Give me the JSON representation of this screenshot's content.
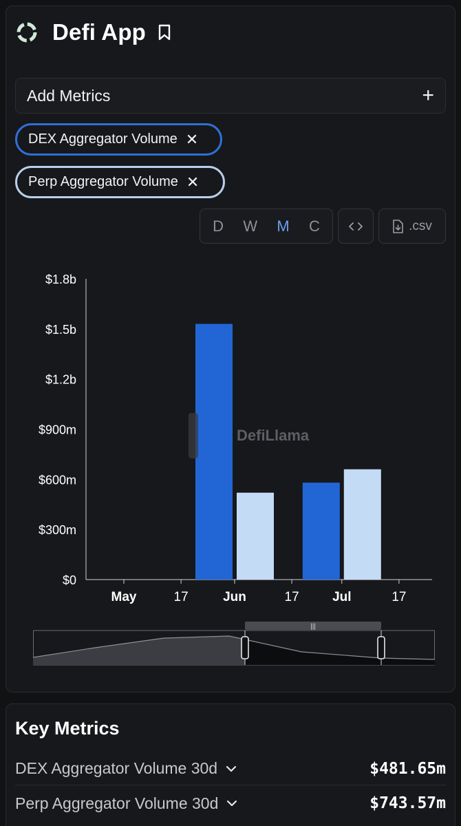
{
  "app": {
    "title": "Defi App",
    "logo_icon": "ring-logo-icon",
    "bookmark_icon": "bookmark-icon"
  },
  "add_metrics": {
    "label": "Add Metrics",
    "icon": "plus-icon"
  },
  "chips": [
    {
      "label": "DEX Aggregator Volume",
      "color": "#2f6fd9"
    },
    {
      "label": "Perp Aggregator Volume",
      "color": "#b8cfec"
    }
  ],
  "toolbar": {
    "granularity": [
      "D",
      "W",
      "M",
      "C"
    ],
    "active_granularity": "M",
    "embed_icon": "code-icon",
    "csv_label": ".csv",
    "csv_icon": "download-file-icon"
  },
  "watermark": {
    "text": "DefiLlama"
  },
  "chart_data": {
    "type": "bar",
    "x_ticks": [
      "May",
      "17",
      "Jun",
      "17",
      "Jul",
      "17"
    ],
    "y_ticks": [
      "$0",
      "$300m",
      "$600m",
      "$900m",
      "$1.2b",
      "$1.5b",
      "$1.8b"
    ],
    "ylim": [
      0,
      1800000000
    ],
    "series": [
      {
        "name": "DEX Aggregator Volume",
        "color": "#2266d6",
        "points": [
          {
            "x": "2025-06-01",
            "value": 1530000000
          },
          {
            "x": "2025-07-01",
            "value": 580000000
          }
        ]
      },
      {
        "name": "Perp Aggregator Volume",
        "color": "#c4dbf6",
        "points": [
          {
            "x": "2025-06-01",
            "value": 520000000
          },
          {
            "x": "2025-07-01",
            "value": 660000000
          }
        ]
      }
    ],
    "legend": "none",
    "grid": false
  },
  "key_metrics": {
    "title": "Key Metrics",
    "rows": [
      {
        "label": "DEX Aggregator Volume 30d",
        "value": "$481.65m"
      },
      {
        "label": "Perp Aggregator Volume 30d",
        "value": "$743.57m"
      }
    ]
  }
}
